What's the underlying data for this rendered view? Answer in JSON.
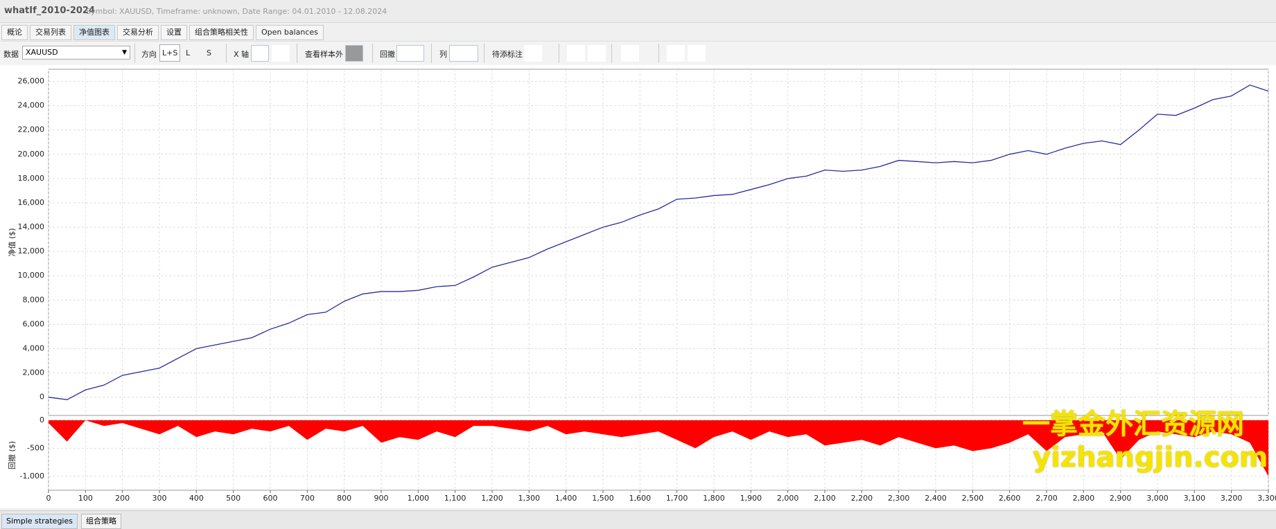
{
  "header": {
    "title": "whatIf_2010-2024",
    "subtitle": "Symbol: XAUUSD, Timeframe: unknown, Date Range: 04.01.2010 - 12.08.2024"
  },
  "tabs": [
    "概论",
    "交易列表",
    "净值图表",
    "交易分析",
    "设置",
    "组合策略相关性",
    "Open balances"
  ],
  "toolbar": {
    "data_label": "数据",
    "symbol": "XAUUSD",
    "direction_label": "方向",
    "directions": [
      "L+S",
      "L",
      "S"
    ],
    "x_axis_label": "X 轴",
    "out_of_sample_label": "查看样本外",
    "drawdown_label": "回撤",
    "columns_label": "列",
    "annotations_label": "待添标注"
  },
  "chart_data": [
    {
      "type": "line",
      "ylabel": "净值 ($)",
      "color": "#2b2b9b",
      "grid": true,
      "x": [
        0,
        50,
        100,
        150,
        200,
        250,
        300,
        350,
        400,
        450,
        500,
        550,
        600,
        650,
        700,
        750,
        800,
        850,
        900,
        950,
        1000,
        1050,
        1100,
        1150,
        1200,
        1250,
        1300,
        1350,
        1400,
        1450,
        1500,
        1550,
        1600,
        1650,
        1700,
        1750,
        1800,
        1850,
        1900,
        1950,
        2000,
        2050,
        2100,
        2150,
        2200,
        2250,
        2300,
        2350,
        2400,
        2450,
        2500,
        2550,
        2600,
        2650,
        2700,
        2750,
        2800,
        2850,
        2900,
        2950,
        3000,
        3050,
        3100,
        3150,
        3200,
        3250,
        3300
      ],
      "values": [
        0,
        -200,
        600,
        1000,
        1800,
        2100,
        2400,
        3200,
        4000,
        4300,
        4600,
        4900,
        5600,
        6100,
        6800,
        7000,
        7900,
        8500,
        8700,
        8700,
        8800,
        9100,
        9200,
        9900,
        10700,
        11100,
        11500,
        12200,
        12800,
        13400,
        14000,
        14400,
        15000,
        15500,
        16300,
        16400,
        16600,
        16700,
        17100,
        17500,
        18000,
        18200,
        18700,
        18600,
        18700,
        19000,
        19500,
        19400,
        19300,
        19400,
        19300,
        19500,
        20000,
        20300,
        20000,
        20500,
        20900,
        21100,
        20800,
        22000,
        23300,
        23200,
        23800,
        24500,
        24800,
        25700,
        25200
      ],
      "xlim": [
        0,
        3300
      ],
      "ylim": [
        -1500,
        27000
      ],
      "yticks": [
        0,
        {
          "value": 2000,
          "label": "2,000"
        },
        {
          "value": 4000,
          "label": "4,000"
        },
        {
          "value": 6000,
          "label": "6,000"
        },
        {
          "value": 8000,
          "label": "8,000"
        },
        {
          "value": 10000,
          "label": "10,000"
        },
        {
          "value": 12000,
          "label": "12,000"
        },
        {
          "value": 14000,
          "label": "14,000"
        },
        {
          "value": 16000,
          "label": "16,000"
        },
        {
          "value": 18000,
          "label": "18,000"
        },
        {
          "value": 20000,
          "label": "20,000"
        },
        {
          "value": 22000,
          "label": "22,000"
        },
        {
          "value": 24000,
          "label": "24,000"
        },
        {
          "value": 26000,
          "label": "26,000"
        }
      ]
    },
    {
      "type": "area",
      "ylabel": "回撤 ($)",
      "color": "#ff0000",
      "grid": true,
      "x": [
        0,
        50,
        100,
        150,
        200,
        250,
        300,
        350,
        400,
        450,
        500,
        550,
        600,
        650,
        700,
        750,
        800,
        850,
        900,
        950,
        1000,
        1050,
        1100,
        1150,
        1200,
        1250,
        1300,
        1350,
        1400,
        1450,
        1500,
        1550,
        1600,
        1650,
        1700,
        1750,
        1800,
        1850,
        1900,
        1950,
        2000,
        2050,
        2100,
        2150,
        2200,
        2250,
        2300,
        2350,
        2400,
        2450,
        2500,
        2550,
        2600,
        2650,
        2700,
        2750,
        2800,
        2850,
        2900,
        2950,
        3000,
        3050,
        3100,
        3150,
        3200,
        3250,
        3300
      ],
      "values": [
        -50,
        -380,
        0,
        -100,
        -50,
        -150,
        -250,
        -100,
        -300,
        -200,
        -250,
        -150,
        -200,
        -100,
        -350,
        -150,
        -200,
        -100,
        -400,
        -300,
        -350,
        -200,
        -300,
        -100,
        -100,
        -150,
        -200,
        -100,
        -250,
        -200,
        -250,
        -300,
        -250,
        -200,
        -350,
        -500,
        -300,
        -200,
        -350,
        -200,
        -300,
        -250,
        -450,
        -400,
        -350,
        -450,
        -300,
        -400,
        -500,
        -450,
        -550,
        -500,
        -400,
        -250,
        -550,
        -300,
        -250,
        -200,
        -700,
        -350,
        -200,
        -250,
        -300,
        -200,
        -250,
        -400,
        -1000
      ],
      "xlim": [
        0,
        3300
      ],
      "ylim": [
        -1250,
        0
      ],
      "yticks": [
        0,
        -500,
        {
          "value": -1000,
          "label": "-1,000"
        }
      ],
      "xticks": [
        0,
        100,
        200,
        300,
        400,
        500,
        600,
        700,
        800,
        900,
        {
          "value": 1000,
          "label": "1,000"
        },
        {
          "value": 1100,
          "label": "1,100"
        },
        {
          "value": 1200,
          "label": "1,200"
        },
        {
          "value": 1300,
          "label": "1,300"
        },
        {
          "value": 1400,
          "label": "1,400"
        },
        {
          "value": 1500,
          "label": "1,500"
        },
        {
          "value": 1600,
          "label": "1,600"
        },
        {
          "value": 1700,
          "label": "1,700"
        },
        {
          "value": 1800,
          "label": "1,800"
        },
        {
          "value": 1900,
          "label": "1,900"
        },
        {
          "value": 2000,
          "label": "2,000"
        },
        {
          "value": 2100,
          "label": "2,100"
        },
        {
          "value": 2200,
          "label": "2,200"
        },
        {
          "value": 2300,
          "label": "2,300"
        },
        {
          "value": 2400,
          "label": "2,400"
        },
        {
          "value": 2500,
          "label": "2,500"
        },
        {
          "value": 2600,
          "label": "2,600"
        },
        {
          "value": 2700,
          "label": "2,700"
        },
        {
          "value": 2800,
          "label": "2,800"
        },
        {
          "value": 2900,
          "label": "2,900"
        },
        {
          "value": 3000,
          "label": "3,000"
        },
        {
          "value": 3100,
          "label": "3,100"
        },
        {
          "value": 3200,
          "label": "3,200"
        },
        {
          "value": 3300,
          "label": "3,300"
        }
      ]
    }
  ],
  "watermark": {
    "text_cn": "一掌金外汇资源网",
    "text_en": "yizhangjin.com"
  },
  "bottom_tabs": [
    "Simple strategies",
    "组合策略"
  ]
}
